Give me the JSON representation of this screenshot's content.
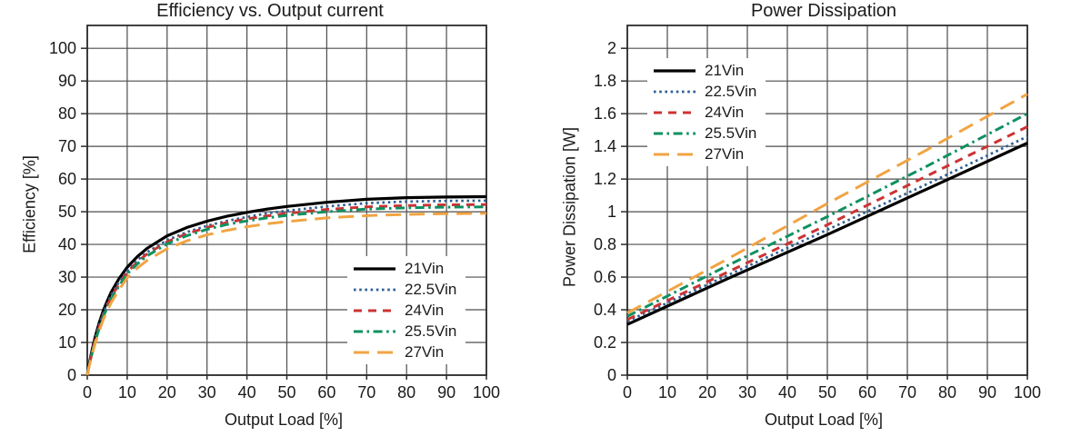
{
  "chart_data": [
    {
      "type": "line",
      "title": "Efficiency vs. Output current",
      "xlabel": "Output Load [%]",
      "ylabel": "Efficiency [%]",
      "xlim": [
        0,
        100
      ],
      "ylim": [
        0,
        107
      ],
      "x_ticks": [
        "0",
        "10",
        "20",
        "30",
        "40",
        "50",
        "60",
        "70",
        "80",
        "90",
        "100"
      ],
      "y_ticks": [
        "0",
        "10",
        "20",
        "30",
        "40",
        "50",
        "60",
        "70",
        "80",
        "90",
        "100"
      ],
      "grid": true,
      "legend_position": "lower right",
      "series": [
        {
          "name": "21Vin",
          "color": "#000000",
          "style": "solid",
          "width": 3.2,
          "x": [
            0,
            0.5,
            1,
            1.5,
            2,
            3,
            4,
            5,
            6,
            8,
            10,
            12.5,
            15,
            20,
            25,
            30,
            35,
            40,
            45,
            50,
            60,
            70,
            80,
            90,
            100
          ],
          "y": [
            0,
            3.5,
            6.5,
            9.3,
            11.8,
            16.1,
            19.7,
            22.7,
            25.4,
            29.6,
            33.0,
            36.2,
            38.8,
            42.6,
            45.2,
            47.1,
            48.6,
            49.8,
            50.8,
            51.6,
            52.9,
            53.8,
            54.3,
            54.5,
            54.6
          ]
        },
        {
          "name": "22.5Vin",
          "color": "#2E5F93",
          "style": "dotted",
          "width": 2.7,
          "x": [
            0,
            0.5,
            1,
            1.5,
            2,
            3,
            4,
            5,
            6,
            8,
            10,
            12.5,
            15,
            20,
            25,
            30,
            35,
            40,
            45,
            50,
            60,
            70,
            80,
            90,
            100
          ],
          "y": [
            0,
            3.3,
            6.2,
            8.9,
            11.3,
            15.5,
            19.0,
            21.9,
            24.5,
            28.6,
            32.0,
            35.1,
            37.6,
            41.3,
            43.8,
            45.7,
            47.2,
            48.4,
            49.5,
            50.3,
            51.6,
            52.6,
            53.1,
            53.3,
            53.4
          ]
        },
        {
          "name": "24Vin",
          "color": "#CC3333",
          "style": "dashed",
          "width": 3,
          "x": [
            0,
            0.5,
            1,
            1.5,
            2,
            3,
            4,
            5,
            6,
            8,
            10,
            12.5,
            15,
            20,
            25,
            30,
            35,
            40,
            45,
            50,
            60,
            70,
            80,
            90,
            100
          ],
          "y": [
            0,
            3.1,
            5.9,
            8.5,
            10.8,
            14.9,
            18.4,
            21.3,
            23.9,
            28.0,
            31.5,
            34.6,
            37.1,
            40.8,
            43.3,
            45.2,
            46.7,
            47.8,
            48.7,
            49.5,
            50.7,
            51.5,
            51.9,
            52.1,
            52.2
          ]
        },
        {
          "name": "25.5Vin",
          "color": "#0E9160",
          "style": "dashdot",
          "width": 3,
          "x": [
            0,
            0.5,
            1,
            1.5,
            2,
            3,
            4,
            5,
            6,
            8,
            10,
            12.5,
            15,
            20,
            25,
            30,
            35,
            40,
            45,
            50,
            60,
            70,
            80,
            90,
            100
          ],
          "y": [
            0,
            3.0,
            5.7,
            8.2,
            10.4,
            14.4,
            17.9,
            20.7,
            23.3,
            27.4,
            31.0,
            34.0,
            36.5,
            40.2,
            42.7,
            44.6,
            46.1,
            47.2,
            48.1,
            48.9,
            50.0,
            50.8,
            51.2,
            51.4,
            51.5
          ]
        },
        {
          "name": "27Vin",
          "color": "#F1A443",
          "style": "longdash",
          "width": 3,
          "x": [
            0,
            0.5,
            1,
            1.5,
            2,
            3,
            4,
            5,
            6,
            8,
            10,
            12.5,
            15,
            20,
            25,
            30,
            35,
            40,
            45,
            50,
            60,
            70,
            80,
            90,
            100
          ],
          "y": [
            0,
            2.8,
            5.3,
            7.7,
            9.8,
            13.6,
            17.0,
            19.7,
            22.2,
            26.2,
            29.8,
            32.7,
            35.1,
            38.7,
            41.1,
            42.9,
            44.3,
            45.4,
            46.3,
            47.0,
            48.1,
            48.8,
            49.2,
            49.4,
            49.5
          ]
        }
      ]
    },
    {
      "type": "line",
      "title": "Power Dissipation",
      "xlabel": "Output Load [%]",
      "ylabel": "Power Dissipation [W]",
      "xlim": [
        0,
        100
      ],
      "ylim": [
        0,
        2.14
      ],
      "x_ticks": [
        "0",
        "10",
        "20",
        "30",
        "40",
        "50",
        "60",
        "70",
        "80",
        "90",
        "100"
      ],
      "y_ticks": [
        "0",
        "0.2",
        "0.4",
        "0.6",
        "0.8",
        "1",
        "1.2",
        "1.4",
        "1.6",
        "1.8",
        "2"
      ],
      "grid": true,
      "legend_position": "upper left",
      "series": [
        {
          "name": "21Vin",
          "color": "#000000",
          "style": "solid",
          "width": 3.2,
          "x": [
            0,
            25,
            50,
            75,
            100
          ],
          "y": [
            0.31,
            0.59,
            0.86,
            1.14,
            1.42
          ]
        },
        {
          "name": "22.5Vin",
          "color": "#2E5F93",
          "style": "dotted",
          "width": 2.7,
          "x": [
            0,
            25,
            50,
            75,
            100
          ],
          "y": [
            0.33,
            0.61,
            0.89,
            1.17,
            1.46
          ]
        },
        {
          "name": "24Vin",
          "color": "#CC3333",
          "style": "dashed",
          "width": 3,
          "x": [
            0,
            25,
            50,
            75,
            100
          ],
          "y": [
            0.34,
            0.63,
            0.92,
            1.22,
            1.52
          ]
        },
        {
          "name": "25.5Vin",
          "color": "#0E9160",
          "style": "dashdot",
          "width": 3,
          "x": [
            0,
            25,
            50,
            75,
            100
          ],
          "y": [
            0.36,
            0.67,
            0.97,
            1.28,
            1.6
          ]
        },
        {
          "name": "27Vin",
          "color": "#F1A443",
          "style": "longdash",
          "width": 3,
          "x": [
            0,
            25,
            50,
            75,
            100
          ],
          "y": [
            0.38,
            0.71,
            1.05,
            1.38,
            1.72
          ]
        }
      ]
    }
  ]
}
